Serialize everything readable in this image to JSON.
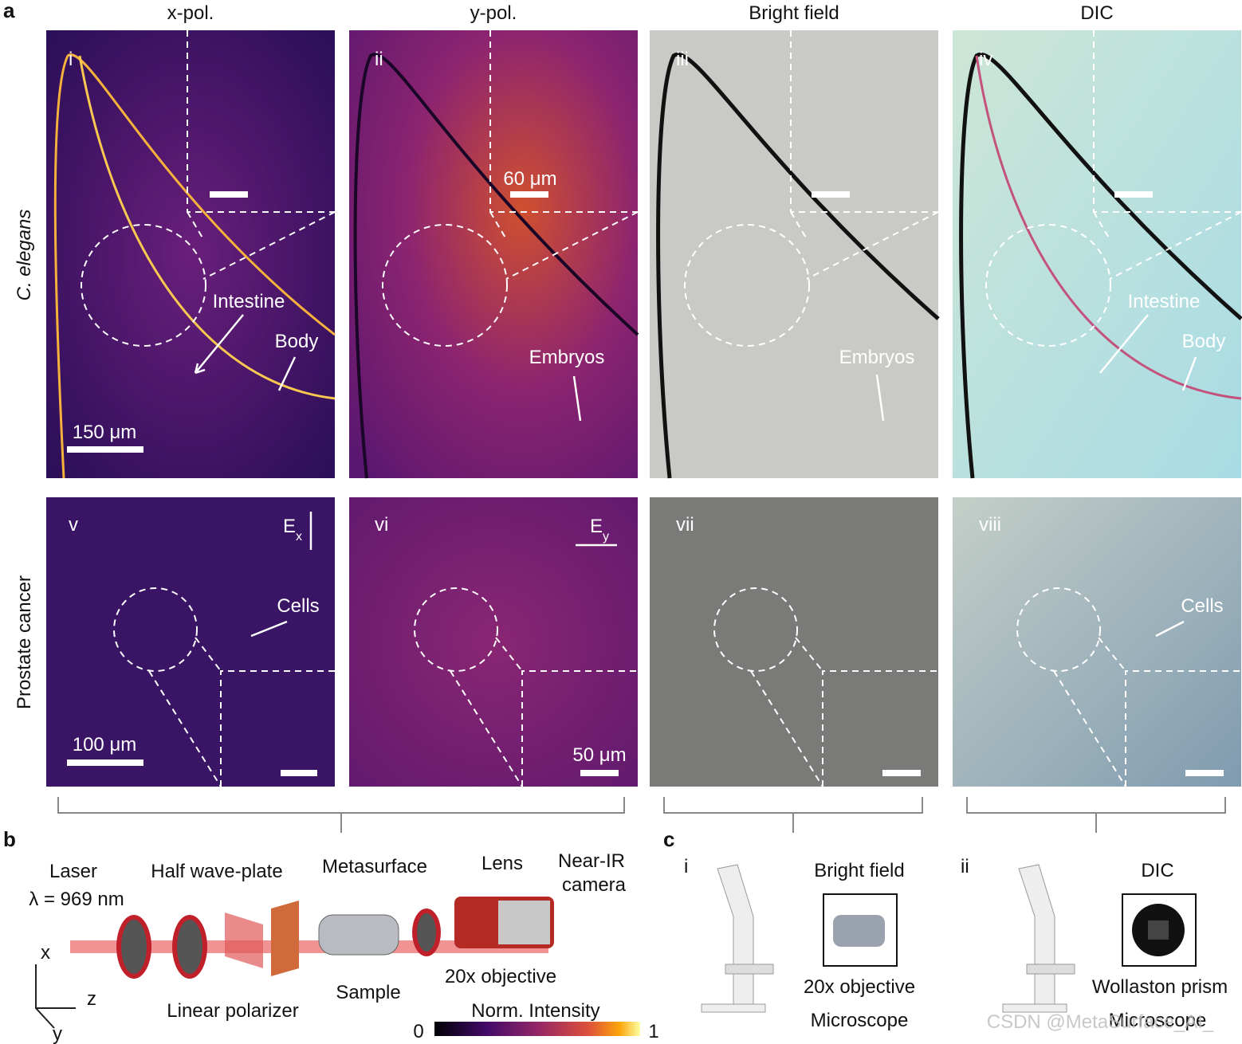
{
  "panel_labels": [
    "a",
    "b",
    "c"
  ],
  "column_titles": [
    "x-pol.",
    "y-pol.",
    "Bright field",
    "DIC"
  ],
  "row_labels": [
    "C. elegans",
    "Prostate cancer"
  ],
  "image_labels": [
    "i",
    "ii",
    "iii",
    "iv",
    "v",
    "vi",
    "vii",
    "viii"
  ],
  "annotations": {
    "intestine": "Intestine",
    "body": "Body",
    "embryos": "Embryos",
    "cells": "Cells",
    "scale_150": "150 μm",
    "scale_60": "60 μm",
    "scale_100": "100 μm",
    "scale_50": "50 μm",
    "field": "E",
    "field_x": "x",
    "field_y": "y"
  },
  "setup": {
    "laser": "Laser",
    "wavelength": "λ = 969 nm",
    "half_wave_plate": "Half wave-plate",
    "metasurface": "Metasurface",
    "lens": "Lens",
    "camera_line1": "Near-IR",
    "camera_line2": "camera",
    "axis_x": "x",
    "axis_y": "y",
    "axis_z": "z",
    "linear_polarizer": "Linear polarizer",
    "sample": "Sample",
    "objective": "20x objective",
    "colorbar_title": "Norm. Intensity",
    "colorbar_min": "0",
    "colorbar_max": "1"
  },
  "microscopes": [
    {
      "label": "i",
      "mode": "Bright field",
      "component": "20x objective",
      "caption": "Microscope"
    },
    {
      "label": "ii",
      "mode": "DIC",
      "component": "Wollaston prism",
      "caption": "Microscope"
    }
  ],
  "watermark": "CSDN @MetaSurface_AI_"
}
